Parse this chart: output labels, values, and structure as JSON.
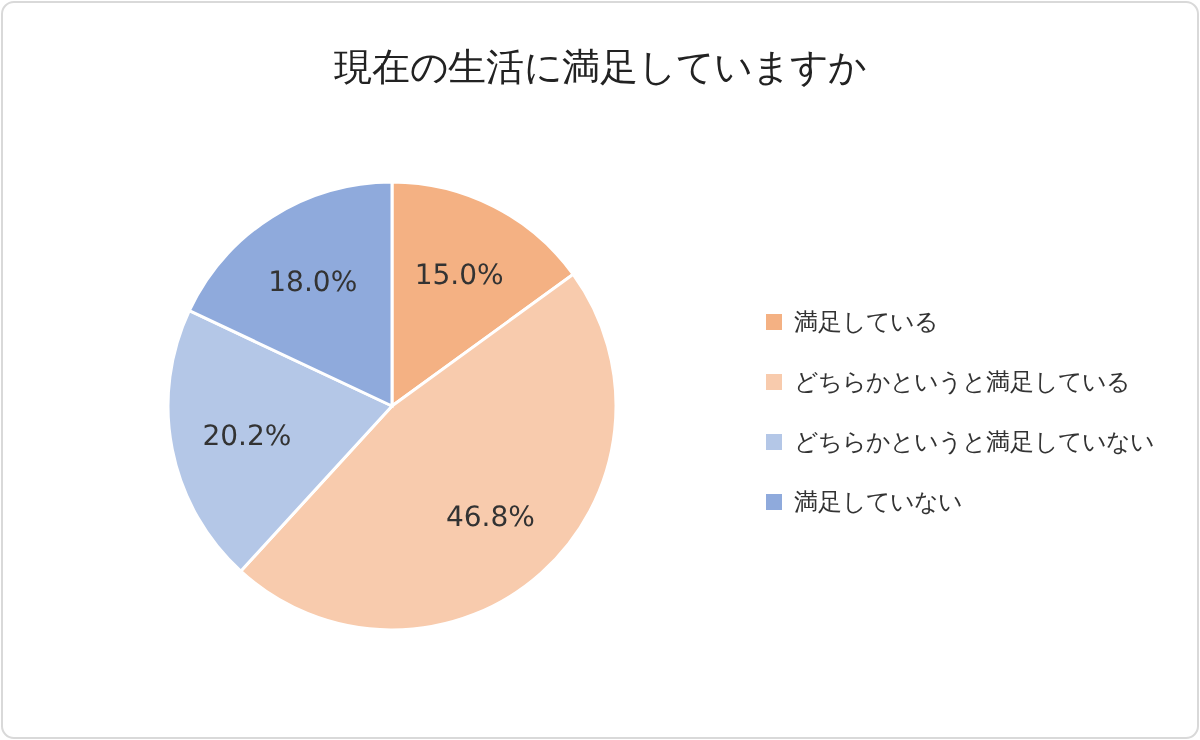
{
  "chart_data": {
    "type": "pie",
    "title": "現在の生活に満足していますか",
    "categories": [
      "満足している",
      "どちらかというと満足している",
      "どちらかというと満足していない",
      "満足していない"
    ],
    "values": [
      15.0,
      46.8,
      20.2,
      18.0
    ],
    "colors": [
      "#f4b183",
      "#f8cbad",
      "#b4c7e7",
      "#8faadc"
    ],
    "value_labels": [
      "15.0%",
      "46.8%",
      "20.2%",
      "18.0%"
    ],
    "legend": "right"
  }
}
